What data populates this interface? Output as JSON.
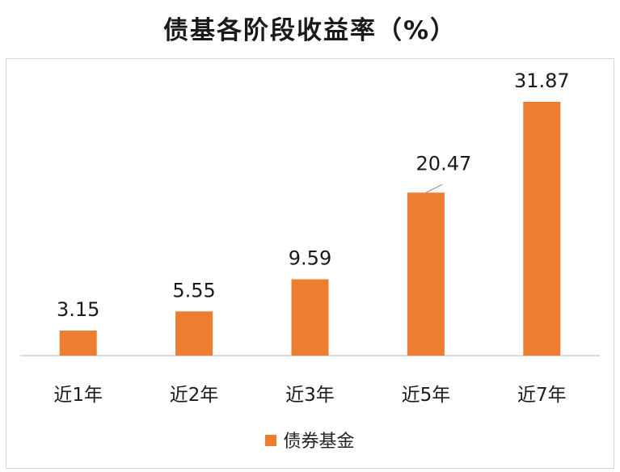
{
  "chart_data": {
    "type": "bar",
    "title": "债基各阶段收益率（%）",
    "categories": [
      "近1年",
      "近2年",
      "近3年",
      "近5年",
      "近7年"
    ],
    "series": [
      {
        "name": "债券基金",
        "values": [
          3.15,
          5.55,
          9.59,
          20.47,
          31.87
        ]
      }
    ],
    "data_labels": [
      "3.15",
      "5.55",
      "9.59",
      "20.47",
      "31.87"
    ],
    "ylim": [
      0,
      31.87
    ],
    "grid": false,
    "legend": "bottom",
    "colors": {
      "bar": "#ED7D31",
      "axis": "#d0d0d0",
      "leader": "#999999"
    }
  }
}
